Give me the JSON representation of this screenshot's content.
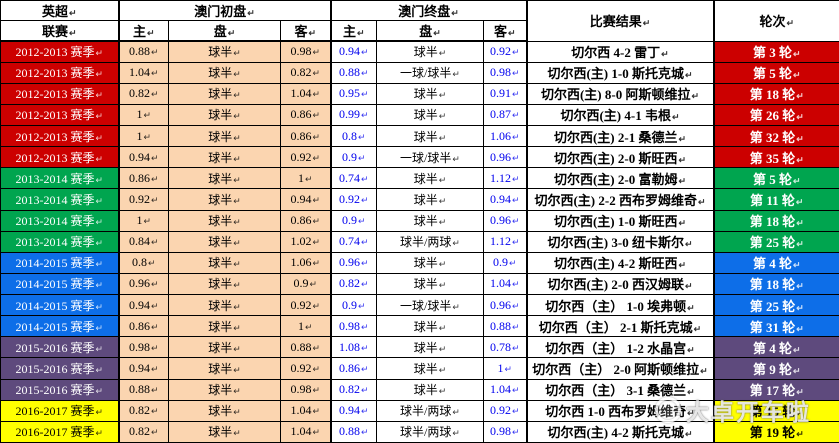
{
  "header": {
    "league_line1": "英超",
    "league_line2": "联赛",
    "macau_opening": "澳门初盘",
    "macau_closing": "澳门终盘",
    "home": "主",
    "handicap": "盘",
    "away": "客",
    "result": "比赛结果",
    "round": "轮次"
  },
  "cell_mark": "↵",
  "colors": {
    "opening_bg": "#FBD5B0",
    "closing_number_text": "#0000EE",
    "groups": {
      "red": {
        "bg": "#CC0000",
        "fg": "#FFFFFF"
      },
      "green": {
        "bg": "#00A54F",
        "fg": "#FFFFFF"
      },
      "blue": {
        "bg": "#0D6EE8",
        "fg": "#FFFFFF"
      },
      "purple": {
        "bg": "#5E4A7D",
        "fg": "#FFFFFF"
      },
      "yellow": {
        "bg": "#FFFF00",
        "fg": "#000000"
      }
    }
  },
  "rows": [
    {
      "season": "2012-2013 赛季",
      "group": "red",
      "open": [
        "0.88",
        "球半",
        "0.98"
      ],
      "close": [
        "0.94",
        "球半",
        "0.92"
      ],
      "result": "切尔西 4-2 雷丁",
      "round": "第 3 轮"
    },
    {
      "season": "2012-2013 赛季",
      "group": "red",
      "open": [
        "1.04",
        "球半",
        "0.82"
      ],
      "close": [
        "0.88",
        "一球/球半",
        "0.98"
      ],
      "result": "切尔西(主) 1-0 斯托克城",
      "round": "第 5 轮"
    },
    {
      "season": "2012-2013 赛季",
      "group": "red",
      "open": [
        "0.82",
        "球半",
        "1.04"
      ],
      "close": [
        "0.95",
        "球半",
        "0.91"
      ],
      "result": "切尔西(主) 8-0 阿斯顿维拉",
      "round": "第 18 轮"
    },
    {
      "season": "2012-2013 赛季",
      "group": "red",
      "open": [
        "1",
        "球半",
        "0.86"
      ],
      "close": [
        "0.99",
        "球半",
        "0.87"
      ],
      "result": "切尔西(主) 4-1 韦根",
      "round": "第 26 轮"
    },
    {
      "season": "2012-2013 赛季",
      "group": "red",
      "open": [
        "1",
        "球半",
        "0.86"
      ],
      "close": [
        "0.8",
        "球半",
        "1.06"
      ],
      "result": "切尔西(主) 2-1 桑德兰",
      "round": "第 32 轮"
    },
    {
      "season": "2012-2013 赛季",
      "group": "red",
      "open": [
        "0.94",
        "球半",
        "0.92"
      ],
      "close": [
        "0.9",
        "一球/球半",
        "0.96"
      ],
      "result": "切尔西(主) 2-0 斯旺西",
      "round": "第 35 轮"
    },
    {
      "season": "2013-2014 赛季",
      "group": "green",
      "open": [
        "0.86",
        "球半",
        "1"
      ],
      "close": [
        "0.74",
        "球半",
        "1.12"
      ],
      "result": "切尔西(主) 2-0 富勒姆",
      "round": "第 5 轮"
    },
    {
      "season": "2013-2014 赛季",
      "group": "green",
      "open": [
        "0.92",
        "球半",
        "0.94"
      ],
      "close": [
        "0.92",
        "球半",
        "0.94"
      ],
      "result": "切尔西(主) 2-2 西布罗姆维奇",
      "round": "第 11 轮"
    },
    {
      "season": "2013-2014 赛季",
      "group": "green",
      "open": [
        "1",
        "球半",
        "0.86"
      ],
      "close": [
        "0.9",
        "球半",
        "0.96"
      ],
      "result": "切尔西(主) 1-0 斯旺西",
      "round": "第 18 轮"
    },
    {
      "season": "2013-2014 赛季",
      "group": "green",
      "open": [
        "0.84",
        "球半",
        "1.02"
      ],
      "close": [
        "0.74",
        "球半/两球",
        "1.12"
      ],
      "result": "切尔西(主) 3-0 纽卡斯尔",
      "round": "第 25 轮"
    },
    {
      "season": "2014-2015 赛季",
      "group": "blue",
      "open": [
        "0.8",
        "球半",
        "1.06"
      ],
      "close": [
        "0.96",
        "球半",
        "0.9"
      ],
      "result": "切尔西(主) 4-2 斯旺西",
      "round": "第 4 轮"
    },
    {
      "season": "2014-2015 赛季",
      "group": "blue",
      "open": [
        "0.96",
        "球半",
        "0.9"
      ],
      "close": [
        "0.82",
        "球半",
        "1.04"
      ],
      "result": "切尔西(主) 2-0 西汉姆联",
      "round": "第 18 轮"
    },
    {
      "season": "2014-2015 赛季",
      "group": "blue",
      "open": [
        "0.94",
        "球半",
        "0.92"
      ],
      "close": [
        "0.9",
        "一球/球半",
        "0.96"
      ],
      "result": "切尔西（主） 1-0 埃弗顿",
      "round": "第 25 轮"
    },
    {
      "season": "2014-2015 赛季",
      "group": "blue",
      "open": [
        "0.86",
        "球半",
        "1"
      ],
      "close": [
        "0.98",
        "球半",
        "0.88"
      ],
      "result": "切尔西（主） 2-1 斯托克城",
      "round": "第 31 轮"
    },
    {
      "season": "2015-2016 赛季",
      "group": "purple",
      "open": [
        "0.98",
        "球半",
        "0.88"
      ],
      "close": [
        "1.08",
        "球半",
        "0.78"
      ],
      "result": "切尔西（主） 1-2 水晶宫",
      "round": "第 4 轮"
    },
    {
      "season": "2015-2016 赛季",
      "group": "purple",
      "open": [
        "0.94",
        "球半",
        "0.92"
      ],
      "close": [
        "0.86",
        "球半",
        "1"
      ],
      "result": "切尔西（主） 2-0 阿斯顿维拉",
      "round": "第 9 轮"
    },
    {
      "season": "2015-2016 赛季",
      "group": "purple",
      "open": [
        "0.88",
        "球半",
        "0.98"
      ],
      "close": [
        "0.82",
        "球半",
        "1.04"
      ],
      "result": "切尔西（主） 3-1 桑德兰",
      "round": "第 17 轮"
    },
    {
      "season": "2016-2017 赛季",
      "group": "yellow",
      "open": [
        "0.82",
        "球半",
        "1.04"
      ],
      "close": [
        "0.94",
        "球半/两球",
        "0.92"
      ],
      "result": "切尔西 1-0 西布罗姆维奇",
      "round": "第 15 轮"
    },
    {
      "season": "2016-2017 赛季",
      "group": "yellow",
      "open": [
        "0.82",
        "球半",
        "1.04"
      ],
      "close": [
        "0.88",
        "球半/两球",
        "0.98"
      ],
      "result": "切尔西(主) 4-2 斯托克城",
      "round": "第 19 轮"
    }
  ],
  "watermark": {
    "text": "大卓开车啦"
  }
}
